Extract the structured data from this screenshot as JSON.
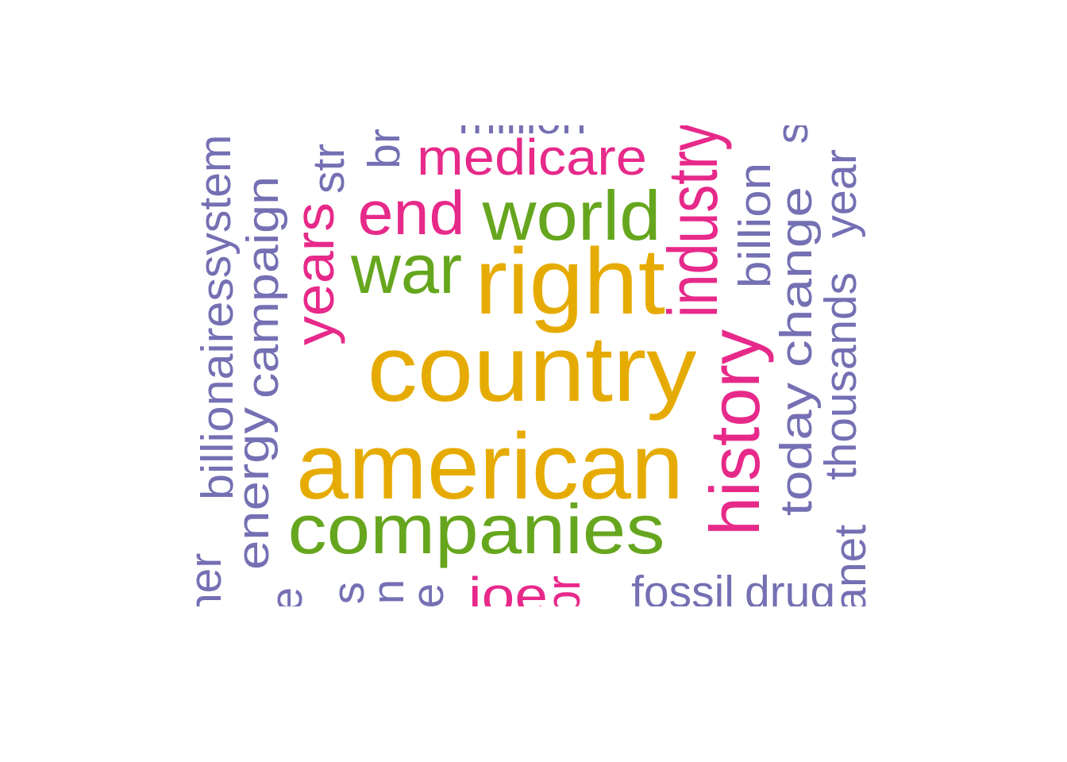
{
  "chart_data": {
    "type": "wordcloud",
    "palette": {
      "tier1": "#E6AB02",
      "tier2": "#66A61E",
      "tier3": "#E7298A",
      "tier4": "#7570B3"
    },
    "words": [
      {
        "text": "country",
        "tier": "tier1",
        "weight": 10
      },
      {
        "text": "american",
        "tier": "tier1",
        "weight": 10
      },
      {
        "text": "right",
        "tier": "tier1",
        "weight": 9
      },
      {
        "text": "companies",
        "tier": "tier2",
        "weight": 7
      },
      {
        "text": "world",
        "tier": "tier2",
        "weight": 7
      },
      {
        "text": "war",
        "tier": "tier2",
        "weight": 6
      },
      {
        "text": "history",
        "tier": "tier3",
        "weight": 6
      },
      {
        "text": "industry",
        "tier": "tier3",
        "weight": 6
      },
      {
        "text": "end",
        "tier": "tier3",
        "weight": 5
      },
      {
        "text": "years",
        "tier": "tier3",
        "weight": 5
      },
      {
        "text": "medicare",
        "tier": "tier3",
        "weight": 5
      },
      {
        "text": "joe",
        "tier": "tier3",
        "weight": 5
      },
      {
        "text": "pr",
        "tier": "tier3",
        "weight": 5
      },
      {
        "text": "change",
        "tier": "tier4",
        "weight": 4
      },
      {
        "text": "today",
        "tier": "tier4",
        "weight": 4
      },
      {
        "text": "thousands",
        "tier": "tier4",
        "weight": 4
      },
      {
        "text": "campaign",
        "tier": "tier4",
        "weight": 4
      },
      {
        "text": "energy",
        "tier": "tier4",
        "weight": 4
      },
      {
        "text": "billionaires",
        "tier": "tier4",
        "weight": 4
      },
      {
        "text": "billion",
        "tier": "tier4",
        "weight": 4
      },
      {
        "text": "year",
        "tier": "tier4",
        "weight": 4
      },
      {
        "text": "system",
        "tier": "tier4",
        "weight": 4
      },
      {
        "text": "planet",
        "tier": "tier4",
        "weight": 4
      },
      {
        "text": "fossil",
        "tier": "tier4",
        "weight": 4
      },
      {
        "text": "drug",
        "tier": "tier4",
        "weight": 4
      },
      {
        "text": "million",
        "tier": "tier4",
        "weight": 4
      },
      {
        "text": "together",
        "tier": "tier4",
        "weight": 4
      },
      {
        "text": "str",
        "tier": "tier4",
        "weight": 4
      },
      {
        "text": "br",
        "tier": "tier4",
        "weight": 4
      },
      {
        "text": "s",
        "tier": "tier4",
        "weight": 4
      },
      {
        "text": "e",
        "tier": "tier4",
        "weight": 4
      },
      {
        "text": "n",
        "tier": "tier4",
        "weight": 4
      },
      {
        "text": "e",
        "tier": "tier4",
        "weight": 4
      },
      {
        "text": "s",
        "tier": "tier4",
        "weight": 4
      }
    ]
  }
}
